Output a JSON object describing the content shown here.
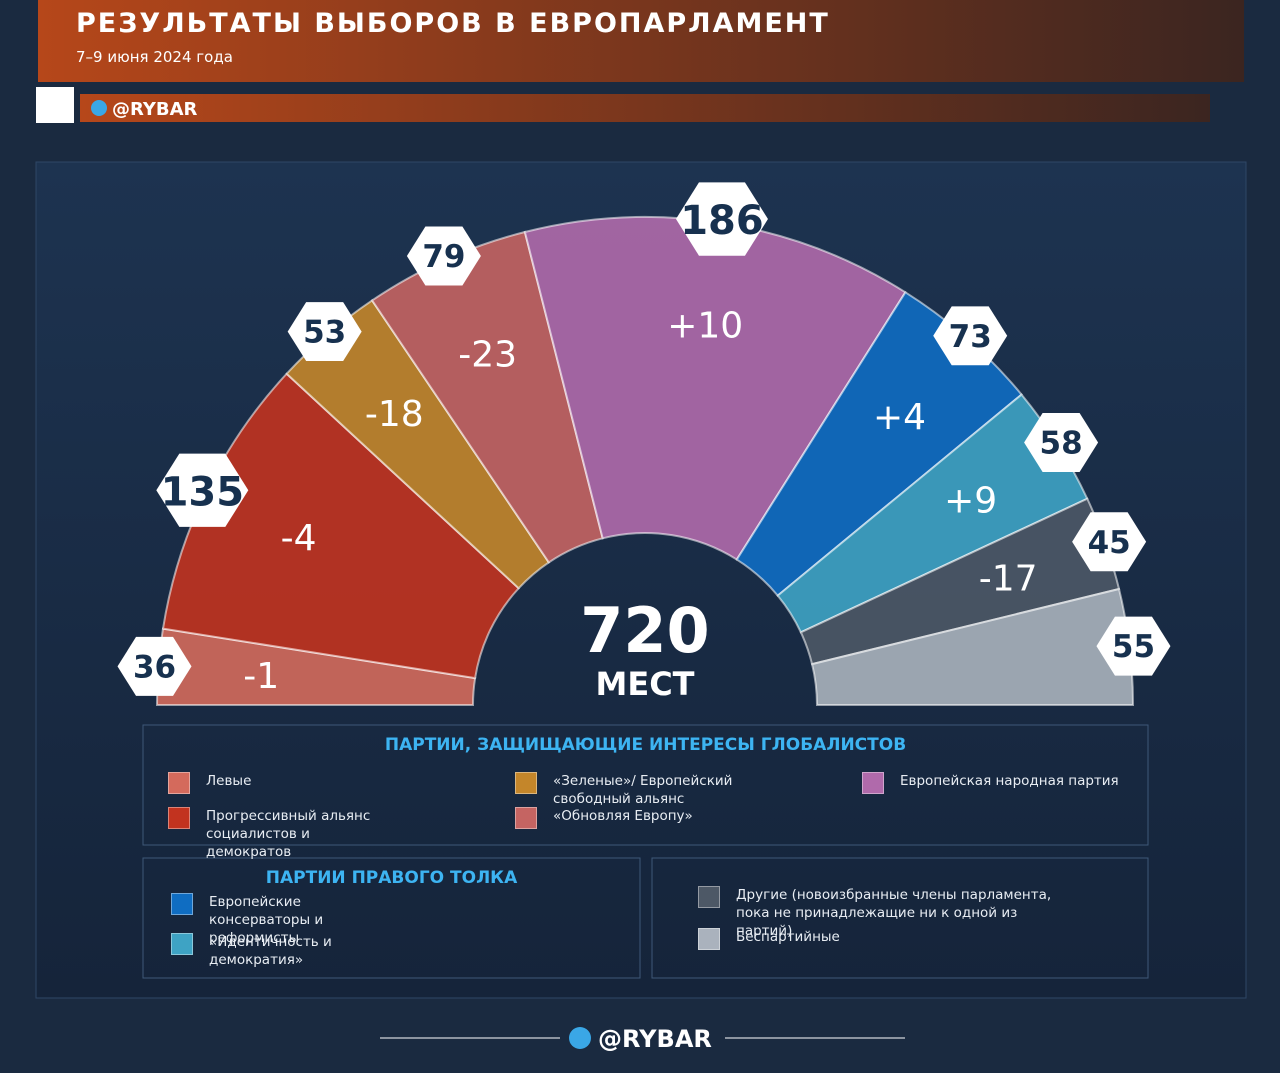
{
  "header": {
    "title": "РЕЗУЛЬТАТЫ ВЫБОРОВ В ЕВРОПАРЛАМЕНТ",
    "subtitle": "7–9 июня 2024 года",
    "channel": "@RYBAR"
  },
  "chart_data": {
    "type": "semicircle",
    "total": 720,
    "total_label": "МЕСТ",
    "groups": [
      {
        "title": "ПАРТИИ, ЗАЩИЩАЮЩИЕ ИНТЕРЕСЫ ГЛОБАЛИСТОВ",
        "series": [
          {
            "name": "Левые",
            "color": "#d46a5c",
            "value": 36,
            "change": "-1"
          },
          {
            "name": "Прогрессивный альянс социалистов и демократов",
            "color": "#c2331f",
            "value": 135,
            "change": "-4"
          },
          {
            "name": "«Зеленые»/ Европейский свободный альянс",
            "color": "#c4862a",
            "value": 53,
            "change": "-18"
          },
          {
            "name": "«Обновляя Европу»",
            "color": "#c56462",
            "value": 79,
            "change": "-23"
          },
          {
            "name": "Европейская народная партия",
            "color": "#b06aab",
            "value": 186,
            "change": "+10"
          }
        ]
      },
      {
        "title": "ПАРТИИ ПРАВОГО ТОЛКА",
        "series": [
          {
            "name": "Европейские консерваторы и реформисты",
            "color": "#0f6dc2",
            "value": 73,
            "change": "+4"
          },
          {
            "name": "«Идентичность и демократия»",
            "color": "#3ea3c4",
            "value": 58,
            "change": "+9"
          }
        ]
      },
      {
        "title": null,
        "series": [
          {
            "name": "Другие (новоизбранные члены парламента, пока не принадлежащие ни к одной из партий)",
            "color": "#4d5866",
            "value": 45,
            "change": "-17"
          },
          {
            "name": "Беспартийные",
            "color": "#aab2bd",
            "value": 55,
            "change": null
          }
        ]
      }
    ]
  },
  "footer": {
    "channel": "@RYBAR"
  }
}
